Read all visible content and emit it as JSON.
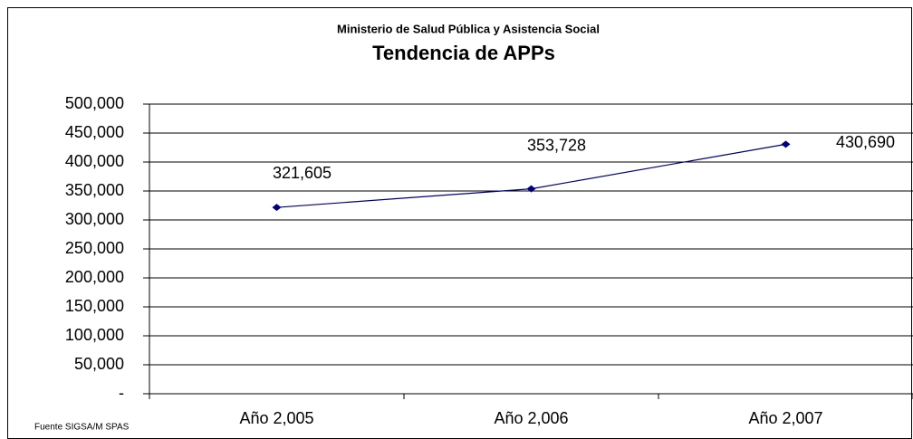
{
  "chart_data": {
    "type": "line",
    "subtitle": "Ministerio de Salud Pública y Asistencia Social",
    "title": "Tendencia de APPs",
    "source": "Fuente SIGSA/M SPAS",
    "categories": [
      "Año 2,005",
      "Año 2,006",
      "Año 2,007"
    ],
    "values": [
      321605,
      353728,
      430690
    ],
    "value_labels": [
      "321,605",
      "353,728",
      "430,690"
    ],
    "color": "#000080",
    "ylim": [
      0,
      500000
    ],
    "yticks": [
      {
        "value": 0,
        "label": "-"
      },
      {
        "value": 50000,
        "label": "50,000"
      },
      {
        "value": 100000,
        "label": "100,000"
      },
      {
        "value": 150000,
        "label": "150,000"
      },
      {
        "value": 200000,
        "label": "200,000"
      },
      {
        "value": 250000,
        "label": "250,000"
      },
      {
        "value": 300000,
        "label": "300,000"
      },
      {
        "value": 350000,
        "label": "350,000"
      },
      {
        "value": 400000,
        "label": "400,000"
      },
      {
        "value": 450000,
        "label": "450,000"
      },
      {
        "value": 500000,
        "label": "500,000"
      }
    ],
    "grid": true
  }
}
